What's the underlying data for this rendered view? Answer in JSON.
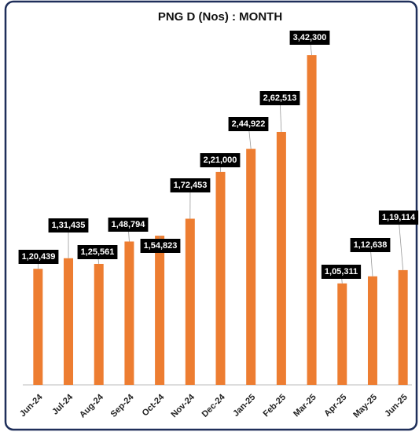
{
  "chart_data": {
    "type": "bar",
    "title": "PNG D (Nos) : MONTH",
    "categories": [
      "Jun-24",
      "Jul-24",
      "Aug-24",
      "Sep-24",
      "Oct-24",
      "Nov-24",
      "Dec-24",
      "Jan-25",
      "Feb-25",
      "Mar-25",
      "Apr-25",
      "May-25",
      "Jun-25"
    ],
    "values": [
      120439,
      131435,
      125561,
      148794,
      154823,
      172453,
      221000,
      244922,
      262513,
      342300,
      105311,
      112638,
      119114
    ],
    "value_labels": [
      "1,20,439",
      "1,31,435",
      "1,25,561",
      "1,48,794",
      "1,54,823",
      "1,72,453",
      "2,21,000",
      "2,44,922",
      "2,62,513",
      "3,42,300",
      "1,05,311",
      "1,12,638",
      "1,19,114"
    ],
    "color": "#ed7d31",
    "ylim": [
      0,
      375000
    ]
  }
}
